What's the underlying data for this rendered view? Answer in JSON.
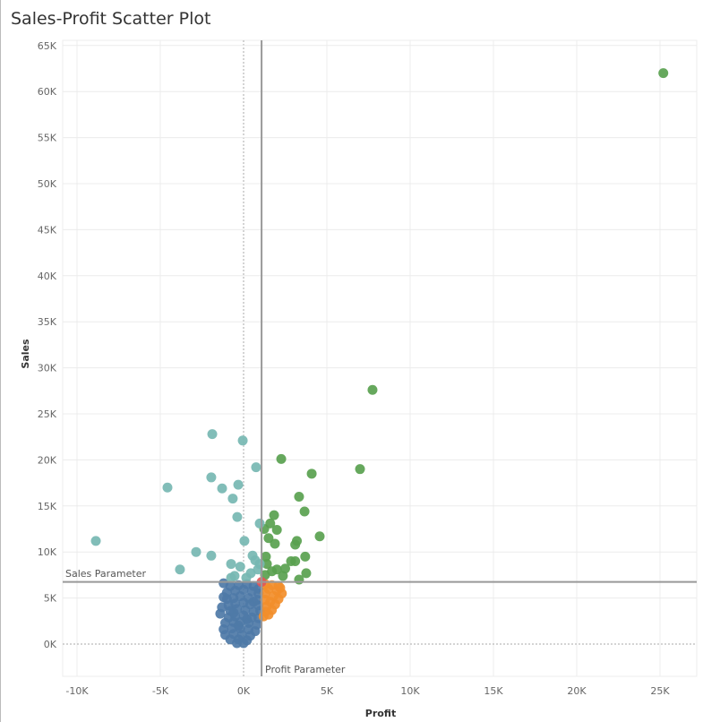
{
  "chart_data": {
    "type": "scatter",
    "title": "Sales-Profit Scatter Plot",
    "xlabel": "Profit",
    "ylabel": "Sales",
    "xlim": [
      -11000,
      27500
    ],
    "ylim": [
      -3500,
      65500
    ],
    "x_ticks": [
      -10000,
      -5000,
      0,
      5000,
      10000,
      15000,
      20000,
      25000
    ],
    "x_tick_labels": [
      "-10K",
      "-5K",
      "0K",
      "5K",
      "10K",
      "15K",
      "20K",
      "25K"
    ],
    "y_ticks": [
      0,
      5000,
      10000,
      15000,
      20000,
      25000,
      30000,
      35000,
      40000,
      45000,
      50000,
      55000,
      60000,
      65000
    ],
    "y_tick_labels": [
      "0K",
      "5K",
      "10K",
      "15K",
      "20K",
      "25K",
      "30K",
      "35K",
      "40K",
      "45K",
      "50K",
      "55K",
      "60K",
      "65K"
    ],
    "grid": true,
    "reference_lines": {
      "profit_parameter": {
        "label": "Profit Parameter",
        "value": 1080
      },
      "sales_parameter": {
        "label": "Sales Parameter",
        "value": 6750
      }
    },
    "colors": {
      "low_sales_loss_or_low_profit": "#4e79a7",
      "low_sales_high_profit": "#f28e2b",
      "high_sales_high_profit": "#59a14f",
      "high_sales_low_profit": "#76b7b2",
      "highlight": "#e15759"
    },
    "series": [
      {
        "color": "#4e79a7",
        "points": [
          [
            -1200,
            6600
          ],
          [
            -800,
            6300
          ],
          [
            -300,
            6400
          ],
          [
            200,
            6500
          ],
          [
            600,
            6300
          ],
          [
            900,
            6000
          ],
          [
            -1000,
            5600
          ],
          [
            -500,
            5800
          ],
          [
            0,
            5900
          ],
          [
            500,
            5700
          ],
          [
            900,
            5500
          ],
          [
            -1000,
            4900
          ],
          [
            -600,
            5000
          ],
          [
            -200,
            5200
          ],
          [
            300,
            5000
          ],
          [
            800,
            4800
          ],
          [
            -900,
            4200
          ],
          [
            -500,
            4400
          ],
          [
            0,
            4500
          ],
          [
            400,
            4300
          ],
          [
            900,
            4200
          ],
          [
            -800,
            3600
          ],
          [
            -400,
            3800
          ],
          [
            100,
            3700
          ],
          [
            600,
            3500
          ],
          [
            1000,
            3600
          ],
          [
            -900,
            2900
          ],
          [
            -500,
            3000
          ],
          [
            0,
            3100
          ],
          [
            500,
            2900
          ],
          [
            900,
            2800
          ],
          [
            -1100,
            2300
          ],
          [
            -600,
            2400
          ],
          [
            -200,
            2400
          ],
          [
            300,
            2300
          ],
          [
            800,
            2100
          ],
          [
            -1200,
            1600
          ],
          [
            -700,
            1700
          ],
          [
            -200,
            1700
          ],
          [
            300,
            1600
          ],
          [
            700,
            1400
          ],
          [
            -1100,
            1000
          ],
          [
            -600,
            1100
          ],
          [
            -100,
            1000
          ],
          [
            400,
            900
          ],
          [
            -800,
            500
          ],
          [
            -300,
            500
          ],
          [
            200,
            400
          ],
          [
            -400,
            100
          ],
          [
            0,
            100
          ],
          [
            -1300,
            4000
          ],
          [
            -1200,
            5100
          ],
          [
            -1400,
            3300
          ],
          [
            -300,
            2000
          ],
          [
            200,
            2700
          ],
          [
            -600,
            3400
          ],
          [
            600,
            4600
          ]
        ]
      },
      {
        "color": "#f28e2b",
        "points": [
          [
            1300,
            6500
          ],
          [
            1700,
            6400
          ],
          [
            2100,
            6300
          ],
          [
            1500,
            6000
          ],
          [
            2000,
            5800
          ],
          [
            2300,
            5500
          ],
          [
            1300,
            5500
          ],
          [
            1800,
            5200
          ],
          [
            1300,
            4800
          ],
          [
            1600,
            4600
          ],
          [
            2100,
            4900
          ],
          [
            1400,
            4100
          ],
          [
            1900,
            4300
          ],
          [
            1300,
            3500
          ],
          [
            1700,
            3700
          ],
          [
            1200,
            3000
          ],
          [
            1500,
            3200
          ],
          [
            2200,
            6100
          ]
        ]
      },
      {
        "color": "#59a14f",
        "points": [
          [
            25200,
            62000
          ],
          [
            7740,
            27600
          ],
          [
            6990,
            19000
          ],
          [
            2260,
            20100
          ],
          [
            4090,
            18500
          ],
          [
            3330,
            16000
          ],
          [
            3660,
            14400
          ],
          [
            4570,
            11700
          ],
          [
            1830,
            14000
          ],
          [
            1600,
            13100
          ],
          [
            1240,
            12500
          ],
          [
            2000,
            12400
          ],
          [
            1500,
            11500
          ],
          [
            1880,
            10900
          ],
          [
            3200,
            11200
          ],
          [
            3100,
            10800
          ],
          [
            3700,
            9500
          ],
          [
            2850,
            9000
          ],
          [
            3100,
            9000
          ],
          [
            1340,
            9500
          ],
          [
            1400,
            8700
          ],
          [
            2000,
            8100
          ],
          [
            2500,
            8200
          ],
          [
            3760,
            7700
          ],
          [
            3330,
            7000
          ],
          [
            2360,
            7400
          ],
          [
            1700,
            7900
          ],
          [
            1290,
            7500
          ]
        ]
      },
      {
        "color": "#76b7b2",
        "points": [
          [
            -1880,
            22800
          ],
          [
            -50,
            22100
          ],
          [
            750,
            19200
          ],
          [
            -4570,
            17000
          ],
          [
            -1940,
            18100
          ],
          [
            -1290,
            16900
          ],
          [
            -320,
            17300
          ],
          [
            -650,
            15800
          ],
          [
            -380,
            13800
          ],
          [
            -8870,
            11200
          ],
          [
            50,
            11200
          ],
          [
            970,
            13100
          ],
          [
            -2850,
            10000
          ],
          [
            -1940,
            9600
          ],
          [
            -750,
            8700
          ],
          [
            -3820,
            8100
          ],
          [
            540,
            9600
          ],
          [
            700,
            9100
          ],
          [
            -200,
            8400
          ],
          [
            430,
            7700
          ],
          [
            -540,
            7400
          ],
          [
            -750,
            7200
          ],
          [
            160,
            7200
          ],
          [
            860,
            8100
          ],
          [
            970,
            8700
          ]
        ]
      },
      {
        "color": "#e15759",
        "points": [
          [
            1080,
            6750
          ]
        ]
      }
    ]
  }
}
